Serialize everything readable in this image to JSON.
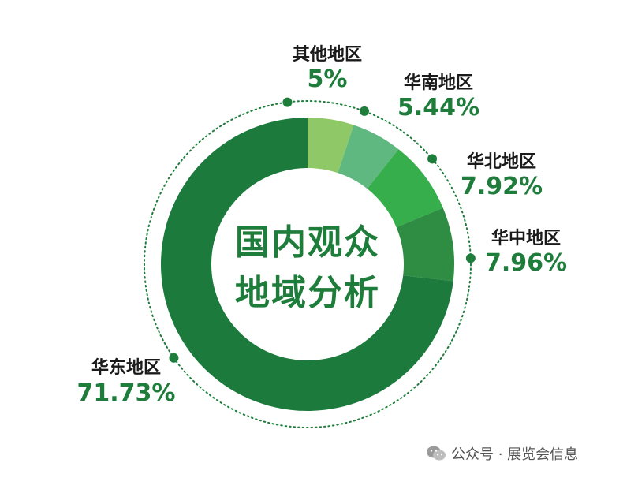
{
  "chart_data": {
    "type": "pie",
    "center_title_line1": "国内观众",
    "center_title_line2": "地域分析",
    "categories": [
      "其他地区",
      "华南地区",
      "华北地区",
      "华中地区",
      "华东地区"
    ],
    "values": [
      5,
      5.44,
      7.92,
      7.96,
      71.73
    ],
    "value_labels": [
      "5%",
      "5.44%",
      "7.92%",
      "7.96%",
      "71.73%"
    ],
    "colors": [
      "#8fc866",
      "#5eb87f",
      "#35ae4b",
      "#2e8d43",
      "#1b7a3c"
    ]
  },
  "watermark": {
    "icon": "wechat-icon",
    "text": "公众号 · 展览会信息"
  }
}
